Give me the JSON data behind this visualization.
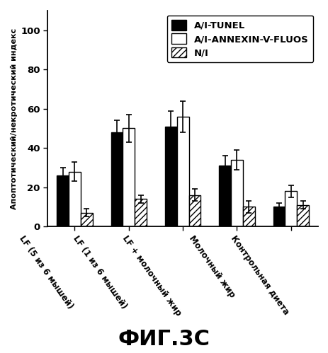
{
  "categories": [
    "LF (5 из 6 мышей)",
    "LF (1 из 6 мышей)",
    "LF + молочный жир",
    "Молочный жир",
    "Контрольная диета"
  ],
  "series": {
    "A/I-TUNEL": {
      "values": [
        26,
        48,
        51,
        31,
        10
      ],
      "errors": [
        4,
        6,
        8,
        5,
        2
      ],
      "color": "#000000",
      "hatch": null
    },
    "A/I-ANNEXIN-V-FLUOS": {
      "values": [
        28,
        50,
        56,
        34,
        18
      ],
      "errors": [
        5,
        7,
        8,
        5,
        3
      ],
      "color": "#ffffff",
      "hatch": null
    },
    "N/I": {
      "values": [
        7,
        14,
        16,
        10,
        11
      ],
      "errors": [
        2,
        2,
        3,
        3,
        2
      ],
      "color": "#ffffff",
      "hatch": "////"
    }
  },
  "ylabel": "Апоптотический/некротический индекс",
  "ylim": [
    0,
    110
  ],
  "yticks": [
    0,
    20,
    40,
    60,
    80,
    100
  ],
  "legend_labels": [
    "A/I-TUNEL",
    "A/I-ANNEXIN-V-FLUOS",
    "N/I"
  ],
  "figure_label": "ФИГ.3С",
  "bar_width": 0.22,
  "background_color": "#ffffff",
  "edge_color": "#000000",
  "label_rotation": -55,
  "label_fontsize": 8.5,
  "ylabel_fontsize": 8.0,
  "legend_fontsize": 9.5,
  "ytick_fontsize": 9.5,
  "figure_label_fontsize": 22
}
